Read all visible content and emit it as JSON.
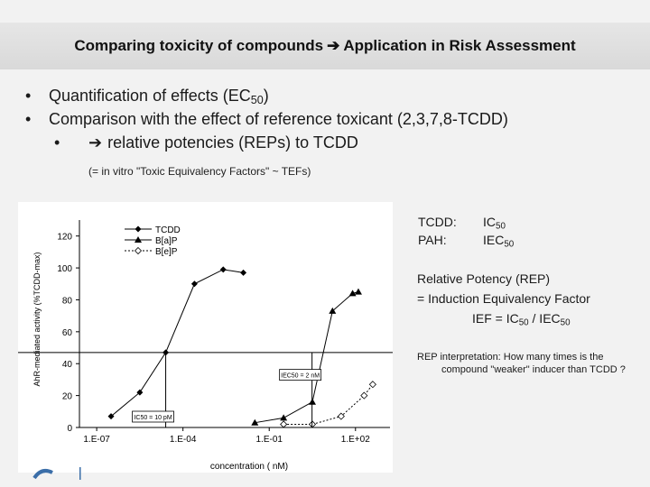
{
  "header": {
    "title_left": "Comparing toxicity of compounds",
    "title_right": "Application in Risk Assessment",
    "arrow_icon": "arrow-right-icon"
  },
  "bullets": {
    "line1_prefix": "Quantification of effects (EC",
    "line1_sub": "50",
    "line1_suffix": ")",
    "line2": "Comparison with the effect of reference toxicant (2,3,7,8-TCDD)",
    "line3": "relative potencies (REPs) to TCDD"
  },
  "note": "(= in vitro \"Toxic Equivalency Factors\" ~ TEFs)",
  "side": {
    "tcdd_label": "TCDD:",
    "tcdd_value": "IC",
    "tcdd_sub": "50",
    "pah_label": "PAH:",
    "pah_value": "IEC",
    "pah_sub": "50",
    "rep_line1": "Relative Potency (REP)",
    "rep_line2": "= Induction Equivalency Factor",
    "rep_line3_a": "IEF = IC",
    "rep_line3_sub1": "50",
    "rep_line3_b": " / IEC",
    "rep_line3_sub2": "50",
    "interp_line1": "REP interpretation: How many times is the",
    "interp_line2": "compound \"weaker\" inducer than TCDD ?"
  },
  "chart_data": {
    "type": "line",
    "title": "",
    "xlabel": "concentration ( nM)",
    "ylabel": "AhR-mediated activity (%TCDD-max)",
    "xscale": "log",
    "xlim": [
      -7.6,
      3.2
    ],
    "ylim": [
      0,
      130
    ],
    "x_ticks": [
      -7,
      -4,
      -1,
      2
    ],
    "x_tick_labels": [
      "1.E-07",
      "1.E-04",
      "1.E-01",
      "1.E+02"
    ],
    "y_ticks": [
      0,
      20,
      40,
      60,
      80,
      100,
      120
    ],
    "y_tick_labels": [
      "0",
      "20",
      "40",
      "60",
      "80",
      "100",
      "120"
    ],
    "grid": false,
    "legend": "top-left",
    "series": [
      {
        "name": "TCDD",
        "marker": "diamond-filled",
        "line": "solid",
        "x": [
          -6.5,
          -5.5,
          -4.6,
          -3.6,
          -2.6,
          -1.9
        ],
        "y": [
          7,
          22,
          47,
          90,
          99,
          97
        ]
      },
      {
        "name": "B[a]P",
        "marker": "triangle-filled",
        "line": "solid",
        "x": [
          -1.5,
          -0.5,
          0.5,
          1.2,
          1.9,
          2.1
        ],
        "y": [
          3,
          6,
          16,
          73,
          84,
          85
        ]
      },
      {
        "name": "B[e]P",
        "marker": "diamond-open",
        "line": "dotted",
        "x": [
          -0.5,
          0.5,
          1.5,
          2.3,
          2.6
        ],
        "y": [
          2,
          2,
          7,
          20,
          27
        ]
      }
    ],
    "reference_line_y": 47,
    "annotations": [
      {
        "text": "IC50 = 10 pM",
        "x": -4.6
      },
      {
        "text": "IEC50 = 2 nM",
        "x": 0.3
      }
    ]
  }
}
